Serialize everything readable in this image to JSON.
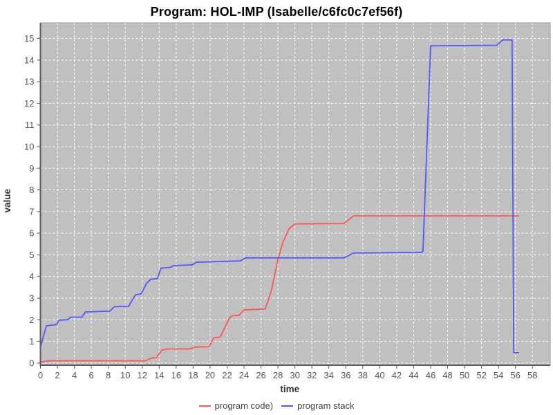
{
  "chart_data": {
    "type": "line",
    "title": "Program: HOL-IMP (Isabelle/c6fc0c7ef56f)",
    "xlabel": "time",
    "ylabel": "value",
    "xlim": [
      0,
      60.1
    ],
    "ylim": [
      -0.1,
      15.72
    ],
    "xticks": [
      0,
      2,
      4,
      6,
      8,
      10,
      12,
      14,
      16,
      18,
      20,
      22,
      24,
      26,
      28,
      30,
      32,
      34,
      36,
      38,
      40,
      42,
      44,
      46,
      48,
      50,
      52,
      54,
      56,
      58
    ],
    "yticks": [
      0,
      1,
      2,
      3,
      4,
      5,
      6,
      7,
      8,
      9,
      10,
      11,
      12,
      13,
      14,
      15
    ],
    "grid": true,
    "legend_position": "bottom-center",
    "colors": {
      "plot_background": "#c0c0c0",
      "gridline": "#ffffff",
      "plot_outline": "#9a9a9a",
      "axis_line": "#5a5a5a",
      "tick_label": "#555555",
      "axis_label": "#333333",
      "title": "#000000",
      "legend_text": "#444444"
    },
    "series": [
      {
        "name": "program code)",
        "color": "#ff5555",
        "points": [
          [
            0,
            0.04
          ],
          [
            0.8,
            0.1
          ],
          [
            12.4,
            0.1
          ],
          [
            13.0,
            0.22
          ],
          [
            13.7,
            0.25
          ],
          [
            14.3,
            0.6
          ],
          [
            15,
            0.65
          ],
          [
            17.6,
            0.65
          ],
          [
            18.3,
            0.74
          ],
          [
            19.9,
            0.75
          ],
          [
            20.4,
            1.15
          ],
          [
            21.2,
            1.2
          ],
          [
            22.3,
            2.1
          ],
          [
            22.6,
            2.18
          ],
          [
            23.4,
            2.2
          ],
          [
            24.0,
            2.45
          ],
          [
            26.5,
            2.5
          ],
          [
            27.2,
            3.3
          ],
          [
            28.0,
            4.8
          ],
          [
            28.6,
            5.6
          ],
          [
            29.3,
            6.2
          ],
          [
            30.0,
            6.43
          ],
          [
            35.8,
            6.45
          ],
          [
            36.9,
            6.8
          ],
          [
            56.4,
            6.8
          ]
        ]
      },
      {
        "name": "program stack",
        "color": "#5555ff",
        "points": [
          [
            0,
            0.75
          ],
          [
            0.7,
            1.72
          ],
          [
            1.9,
            1.78
          ],
          [
            2.2,
            1.98
          ],
          [
            3.2,
            2.0
          ],
          [
            3.6,
            2.12
          ],
          [
            4.9,
            2.12
          ],
          [
            5.3,
            2.36
          ],
          [
            8.2,
            2.4
          ],
          [
            8.7,
            2.6
          ],
          [
            10.4,
            2.62
          ],
          [
            10.8,
            2.9
          ],
          [
            11.2,
            3.15
          ],
          [
            11.9,
            3.2
          ],
          [
            12.5,
            3.68
          ],
          [
            13.0,
            3.87
          ],
          [
            13.8,
            3.9
          ],
          [
            14.2,
            4.38
          ],
          [
            15.3,
            4.42
          ],
          [
            15.7,
            4.5
          ],
          [
            17.9,
            4.54
          ],
          [
            18.4,
            4.66
          ],
          [
            23.6,
            4.72
          ],
          [
            24.2,
            4.86
          ],
          [
            35.8,
            4.86
          ],
          [
            36.9,
            5.08
          ],
          [
            44.9,
            5.12
          ],
          [
            45.1,
            5.17
          ],
          [
            46.0,
            14.66
          ],
          [
            53.8,
            14.68
          ],
          [
            54.5,
            14.93
          ],
          [
            55.6,
            14.93
          ],
          [
            55.8,
            0.48
          ],
          [
            56.4,
            0.48
          ]
        ]
      }
    ]
  }
}
